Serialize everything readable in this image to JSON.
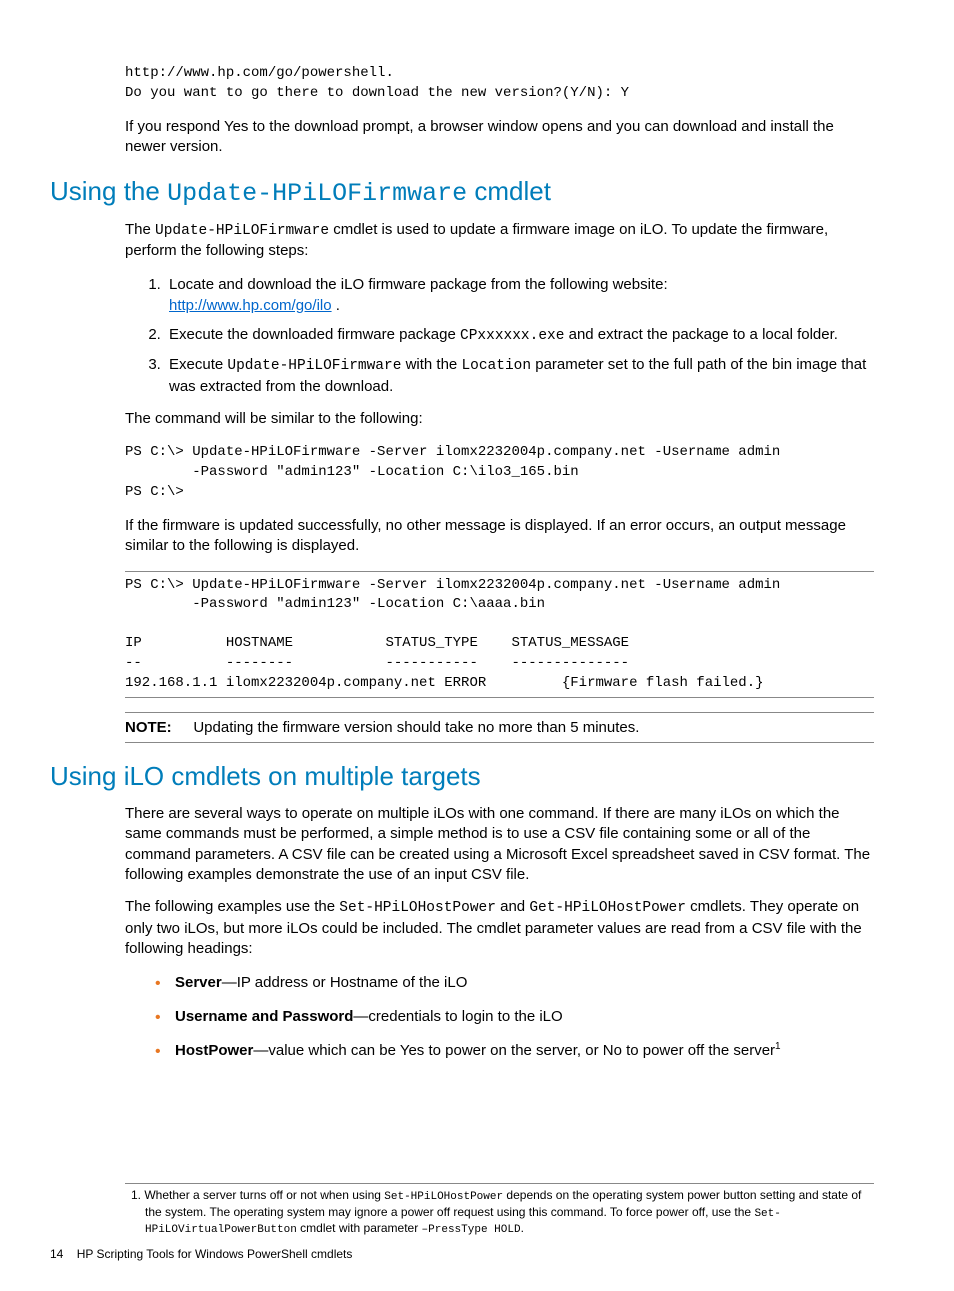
{
  "colors": {
    "heading": "#007dba",
    "link": "#0066cc",
    "bullet": "#e87722",
    "text": "#000000",
    "rule": "#888888",
    "background": "#ffffff"
  },
  "fonts": {
    "body_family": "Arial, Helvetica, sans-serif",
    "mono_family": "Courier New, monospace",
    "heading_size_pt": 26,
    "body_size_pt": 15,
    "mono_size_pt": 14,
    "footnote_size_pt": 12
  },
  "code1": {
    "line1": "http://www.hp.com/go/powershell.",
    "line2": "Do you want to go there to download the new version?(Y/N): Y"
  },
  "para1": "If you respond Yes to the download prompt, a browser window opens and you can download and install the newer version.",
  "heading1": {
    "pre": "Using the ",
    "code": "Update-HPiLOFirmware",
    "post": " cmdlet"
  },
  "para2": {
    "pre": "The ",
    "code": "Update-HPiLOFirmware",
    "post": " cmdlet is used to update a firmware image on iLO. To update the firmware, perform the following steps:"
  },
  "steps": {
    "s1": {
      "text": "Locate and download the iLO firmware package from the following website:",
      "link": "http://www.hp.com/go/ilo",
      "link_suffix": " ."
    },
    "s2": {
      "pre": "Execute the downloaded firmware package ",
      "code": "CPxxxxxx.exe",
      "post": " and extract the package to a local folder."
    },
    "s3": {
      "pre": "Execute ",
      "code1": "Update-HPiLOFirmware",
      "mid": " with the ",
      "code2": "Location",
      "post": " parameter set to the full path of the bin image that was extracted from the download."
    }
  },
  "para3": "The command will be similar to the following:",
  "code2": "PS C:\\> Update-HPiLOFirmware -Server ilomx2232004p.company.net -Username admin\n        -Password \"admin123\" -Location C:\\ilo3_165.bin\nPS C:\\>",
  "para4": "If the firmware is updated successfully, no other message is displayed. If an error occurs, an output message similar to the following is displayed.",
  "code3": "PS C:\\> Update-HPiLOFirmware -Server ilomx2232004p.company.net -Username admin\n        -Password \"admin123\" -Location C:\\aaaa.bin\n\nIP          HOSTNAME           STATUS_TYPE    STATUS_MESSAGE\n--          --------           -----------    --------------\n192.168.1.1 ilomx2232004p.company.net ERROR         {Firmware flash failed.}",
  "note": {
    "label": "NOTE:",
    "text": "Updating the firmware version should take no more than 5 minutes."
  },
  "heading2": "Using iLO cmdlets on multiple targets",
  "para5": "There are several ways to operate on multiple iLOs with one command. If there are many iLOs on which the same commands must be performed, a simple method is to use a CSV file containing some or all of the command parameters. A CSV file can be created using a Microsoft Excel spreadsheet saved in CSV format. The following examples demonstrate the use of an input CSV file.",
  "para6": {
    "pre": "The following examples use the ",
    "code1": "Set-HPiLOHostPower",
    "mid1": " and ",
    "code2": "Get-HPiLOHostPower",
    "post": " cmdlets. They operate on only two iLOs, but more iLOs could be included. The cmdlet parameter values are read from a CSV file with the following headings:"
  },
  "bullets": {
    "b1": {
      "bold": "Server",
      "rest": "—IP address or Hostname of the iLO"
    },
    "b2": {
      "bold": "Username and Password",
      "rest": "—credentials to login to the iLO"
    },
    "b3": {
      "bold": "HostPower",
      "rest": "—value which can be Yes to power on the server, or No to power off the server",
      "sup": "1"
    }
  },
  "footnote": {
    "num": "1.",
    "pre": "Whether a server turns off or not when using ",
    "code1": "Set-HPiLOHostPower",
    "mid1": " depends on the operating system power button setting and state of the system. The operating system may ignore a power off request using this command. To force power off, use the ",
    "code2": "Set-HPiLOVirtualPowerButton",
    "mid2": " cmdlet with parameter ",
    "code3": "–PressType HOLD",
    "post": "."
  },
  "footer": {
    "page": "14",
    "title": "HP Scripting Tools for Windows PowerShell cmdlets"
  }
}
